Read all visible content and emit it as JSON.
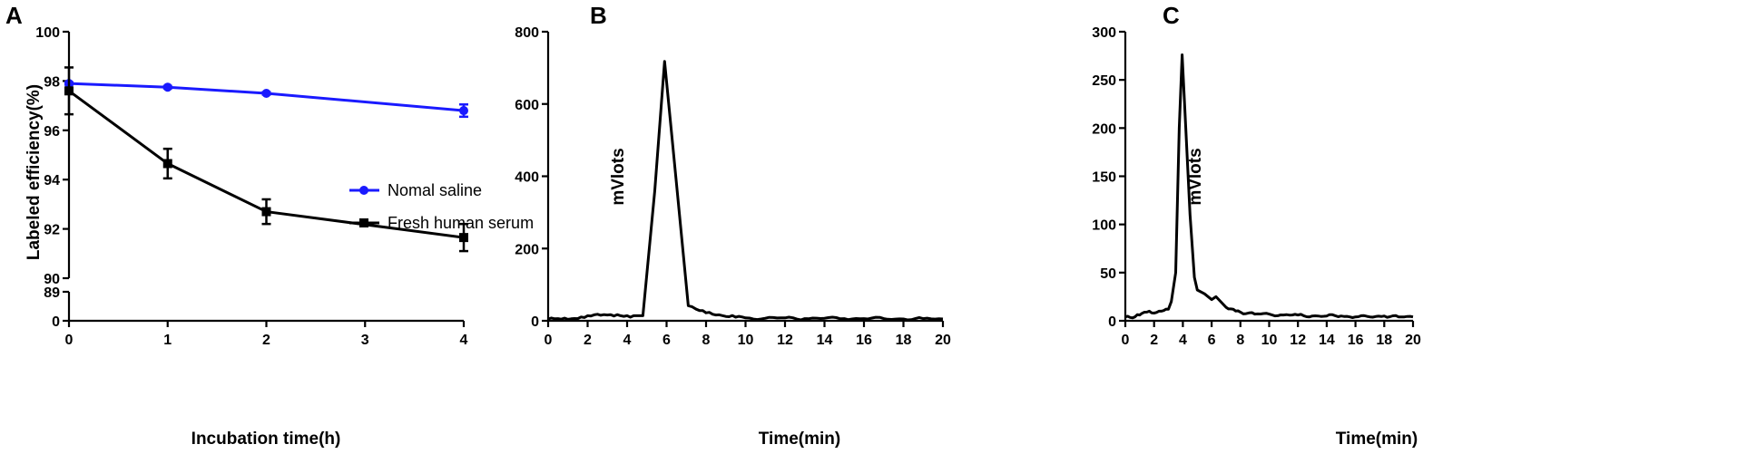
{
  "colors": {
    "saline": "#1a1aff",
    "serum": "#000000",
    "trace": "#000000"
  },
  "chart_data": [
    {
      "panel": "A",
      "type": "line",
      "xlabel": "Incubation time(h)",
      "ylabel": "Labeled efficiency(%)",
      "xlim": [
        0,
        4
      ],
      "x_ticks": [
        "0",
        "1",
        "2",
        "3",
        "4"
      ],
      "y_axis_break": true,
      "y_ticks_upper": [
        "90",
        "92",
        "94",
        "96",
        "98",
        "100"
      ],
      "y_ticks_lower": [
        "0",
        "89"
      ],
      "ylim": [
        90,
        100
      ],
      "legend_position": "center-right",
      "series": [
        {
          "name": "Nomal saline",
          "marker": "circle",
          "color": "#1a1aff",
          "x": [
            0,
            1,
            2,
            4
          ],
          "y": [
            97.9,
            97.75,
            97.5,
            96.8
          ],
          "error": [
            0.05,
            0.05,
            0.05,
            0.25
          ]
        },
        {
          "name": "Fresh human serum",
          "marker": "square",
          "color": "#000000",
          "x": [
            0,
            1,
            2,
            4
          ],
          "y": [
            97.6,
            94.65,
            92.7,
            91.65
          ],
          "error": [
            0.95,
            0.6,
            0.5,
            0.55
          ]
        }
      ]
    },
    {
      "panel": "B",
      "type": "line",
      "xlabel": "Time(min)",
      "ylabel": "mVlots",
      "xlim": [
        0,
        20
      ],
      "ylim": [
        0,
        800
      ],
      "x_ticks": [
        "0",
        "2",
        "4",
        "6",
        "8",
        "10",
        "12",
        "14",
        "16",
        "18",
        "20"
      ],
      "y_ticks": [
        "0",
        "200",
        "400",
        "600",
        "800"
      ],
      "x": [
        0,
        0.5,
        1,
        1.5,
        2,
        2.5,
        3,
        3.5,
        4,
        4.5,
        4.8,
        5.4,
        5.9,
        6.5,
        7.1,
        7.5,
        8,
        8.5,
        9,
        9.5,
        10,
        11,
        12,
        13,
        14,
        15,
        16,
        17,
        18,
        19,
        20
      ],
      "y": [
        5,
        6,
        4,
        6,
        14,
        18,
        16,
        17,
        14,
        14,
        14,
        360,
        718,
        380,
        42,
        32,
        22,
        16,
        12,
        10,
        8,
        7,
        8,
        6,
        7,
        6,
        6,
        6,
        5,
        6,
        5
      ]
    },
    {
      "panel": "C",
      "type": "line",
      "xlabel": "Time(min)",
      "ylabel": "mVlots",
      "xlim": [
        0,
        20
      ],
      "ylim": [
        0,
        300
      ],
      "x_ticks": [
        "0",
        "2",
        "4",
        "6",
        "8",
        "10",
        "12",
        "14",
        "16",
        "18",
        "20"
      ],
      "y_ticks": [
        "0",
        "50",
        "100",
        "150",
        "200",
        "250",
        "300"
      ],
      "x": [
        0,
        0.5,
        1,
        1.5,
        2,
        2.5,
        3,
        3.2,
        3.5,
        3.75,
        3.95,
        4.2,
        4.5,
        4.8,
        5,
        5.5,
        6,
        6.3,
        7,
        7.5,
        8,
        9,
        10,
        11,
        12,
        13,
        14,
        15,
        16,
        17,
        18,
        19,
        20
      ],
      "y": [
        4,
        3,
        6,
        9,
        8,
        10,
        12,
        20,
        50,
        200,
        276,
        200,
        110,
        45,
        32,
        28,
        22,
        25,
        14,
        12,
        9,
        7,
        7,
        6,
        6,
        5,
        5,
        5,
        4,
        4,
        5,
        4,
        4
      ]
    }
  ]
}
